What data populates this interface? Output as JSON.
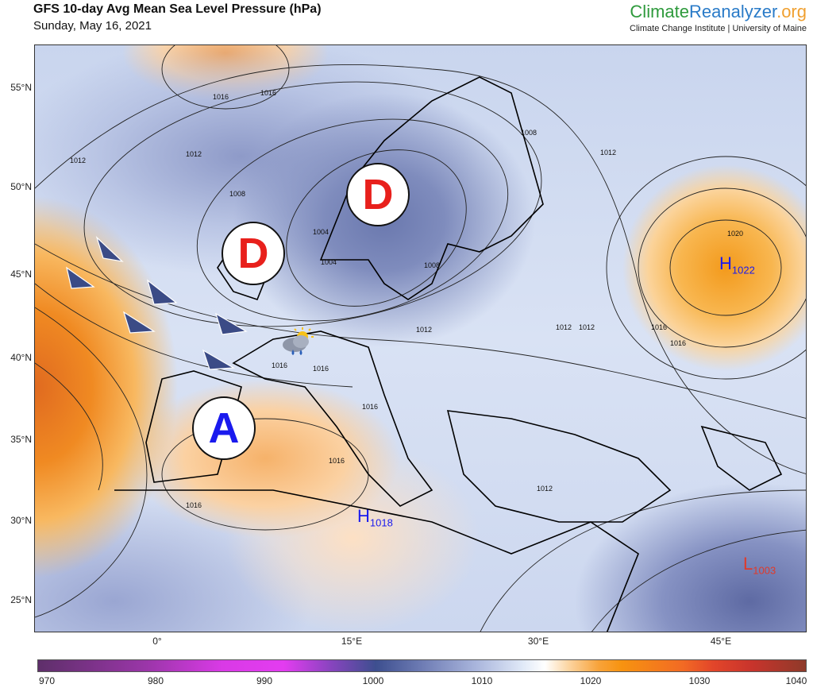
{
  "header": {
    "title": "GFS 10-day Avg Mean Sea Level Pressure (hPa)",
    "date": "Sunday, May 16, 2021",
    "brand": {
      "part1": "Climate",
      "part2": "Reanalyzer",
      "part3": ".org"
    },
    "institution": "Climate Change Institute | University of Maine"
  },
  "map": {
    "lat_labels": [
      "55°N",
      "50°N",
      "45°N",
      "40°N",
      "35°N",
      "30°N",
      "25°N"
    ],
    "lon_labels": [
      "0°",
      "15°E",
      "30°E",
      "45°E"
    ],
    "systems": [
      {
        "symbol": "D",
        "color": "#e8201c",
        "kind": "low"
      },
      {
        "symbol": "D",
        "color": "#e8201c",
        "kind": "low"
      },
      {
        "symbol": "A",
        "color": "#1a1aee",
        "kind": "high"
      }
    ],
    "centers": [
      {
        "letter": "H",
        "value": "1022",
        "color": "#1a1aee"
      },
      {
        "letter": "H",
        "value": "1018",
        "color": "#1a1aee"
      },
      {
        "letter": "L",
        "value": "1003",
        "color": "#e03a2a"
      }
    ],
    "contour_labels": [
      "1016",
      "1016",
      "1012",
      "1012",
      "1008",
      "1004",
      "1004",
      "1008",
      "1008",
      "1012",
      "1020",
      "1016",
      "1016",
      "1012",
      "1012",
      "1012",
      "1016",
      "1016",
      "1016",
      "1016",
      "1016",
      "1012"
    ],
    "weather_icon": "sun-cloud-rain-icon",
    "wind_arrow_color": "#3b4b86"
  },
  "colorbar": {
    "ticks": [
      "970",
      "980",
      "990",
      "1000",
      "1010",
      "1020",
      "1030",
      "1040"
    ],
    "range": [
      970,
      1040
    ]
  }
}
